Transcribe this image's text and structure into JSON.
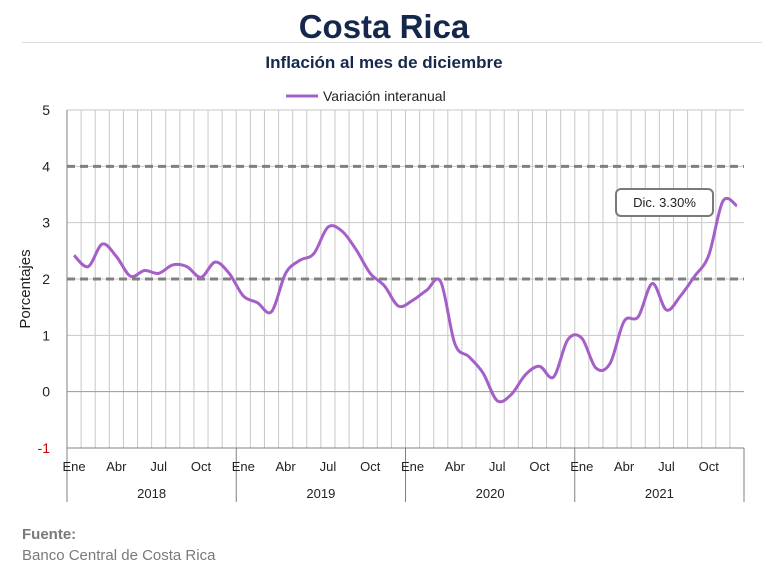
{
  "page": {
    "title": "Costa Rica",
    "subtitle": "Inflación al mes de diciembre",
    "source_heading": "Fuente:",
    "source_text": "Banco Central de Costa Rica"
  },
  "colors": {
    "line": "#a45fc9",
    "band": "#808080",
    "grid": "#c8c8c8",
    "title": "#15284b",
    "negative": "#cc0000"
  },
  "chart_data": {
    "type": "line",
    "title": "Inflación al mes de diciembre",
    "ylabel": "Porcentajes",
    "xlabel": "",
    "ylim": [
      -1,
      5
    ],
    "yticks": [
      -1,
      0,
      1,
      2,
      3,
      4,
      5
    ],
    "grid": true,
    "legend_position": "top",
    "reference_lines": [
      2,
      4
    ],
    "month_tick_labels": [
      "Ene",
      "Abr",
      "Jul",
      "Oct"
    ],
    "years": [
      "2018",
      "2019",
      "2020",
      "2021"
    ],
    "series": [
      {
        "name": "Variación interanual",
        "x": [
          "2018-01",
          "2018-02",
          "2018-03",
          "2018-04",
          "2018-05",
          "2018-06",
          "2018-07",
          "2018-08",
          "2018-09",
          "2018-10",
          "2018-11",
          "2018-12",
          "2019-01",
          "2019-02",
          "2019-03",
          "2019-04",
          "2019-05",
          "2019-06",
          "2019-07",
          "2019-08",
          "2019-09",
          "2019-10",
          "2019-11",
          "2019-12",
          "2020-01",
          "2020-02",
          "2020-03",
          "2020-04",
          "2020-05",
          "2020-06",
          "2020-07",
          "2020-08",
          "2020-09",
          "2020-10",
          "2020-11",
          "2020-12",
          "2021-01",
          "2021-02",
          "2021-03",
          "2021-04",
          "2021-05",
          "2021-06",
          "2021-07",
          "2021-08",
          "2021-09",
          "2021-10",
          "2021-11",
          "2021-12"
        ],
        "values": [
          2.42,
          2.22,
          2.62,
          2.4,
          2.05,
          2.15,
          2.1,
          2.25,
          2.22,
          2.03,
          2.3,
          2.1,
          1.7,
          1.58,
          1.42,
          2.1,
          2.33,
          2.45,
          2.92,
          2.85,
          2.52,
          2.1,
          1.88,
          1.52,
          1.62,
          1.8,
          1.95,
          0.85,
          0.62,
          0.33,
          -0.16,
          -0.05,
          0.3,
          0.45,
          0.26,
          0.92,
          0.95,
          0.42,
          0.5,
          1.25,
          1.33,
          1.92,
          1.45,
          1.7,
          2.05,
          2.42,
          3.38,
          3.3
        ]
      }
    ],
    "annotation": "Dic. 3.30%"
  }
}
